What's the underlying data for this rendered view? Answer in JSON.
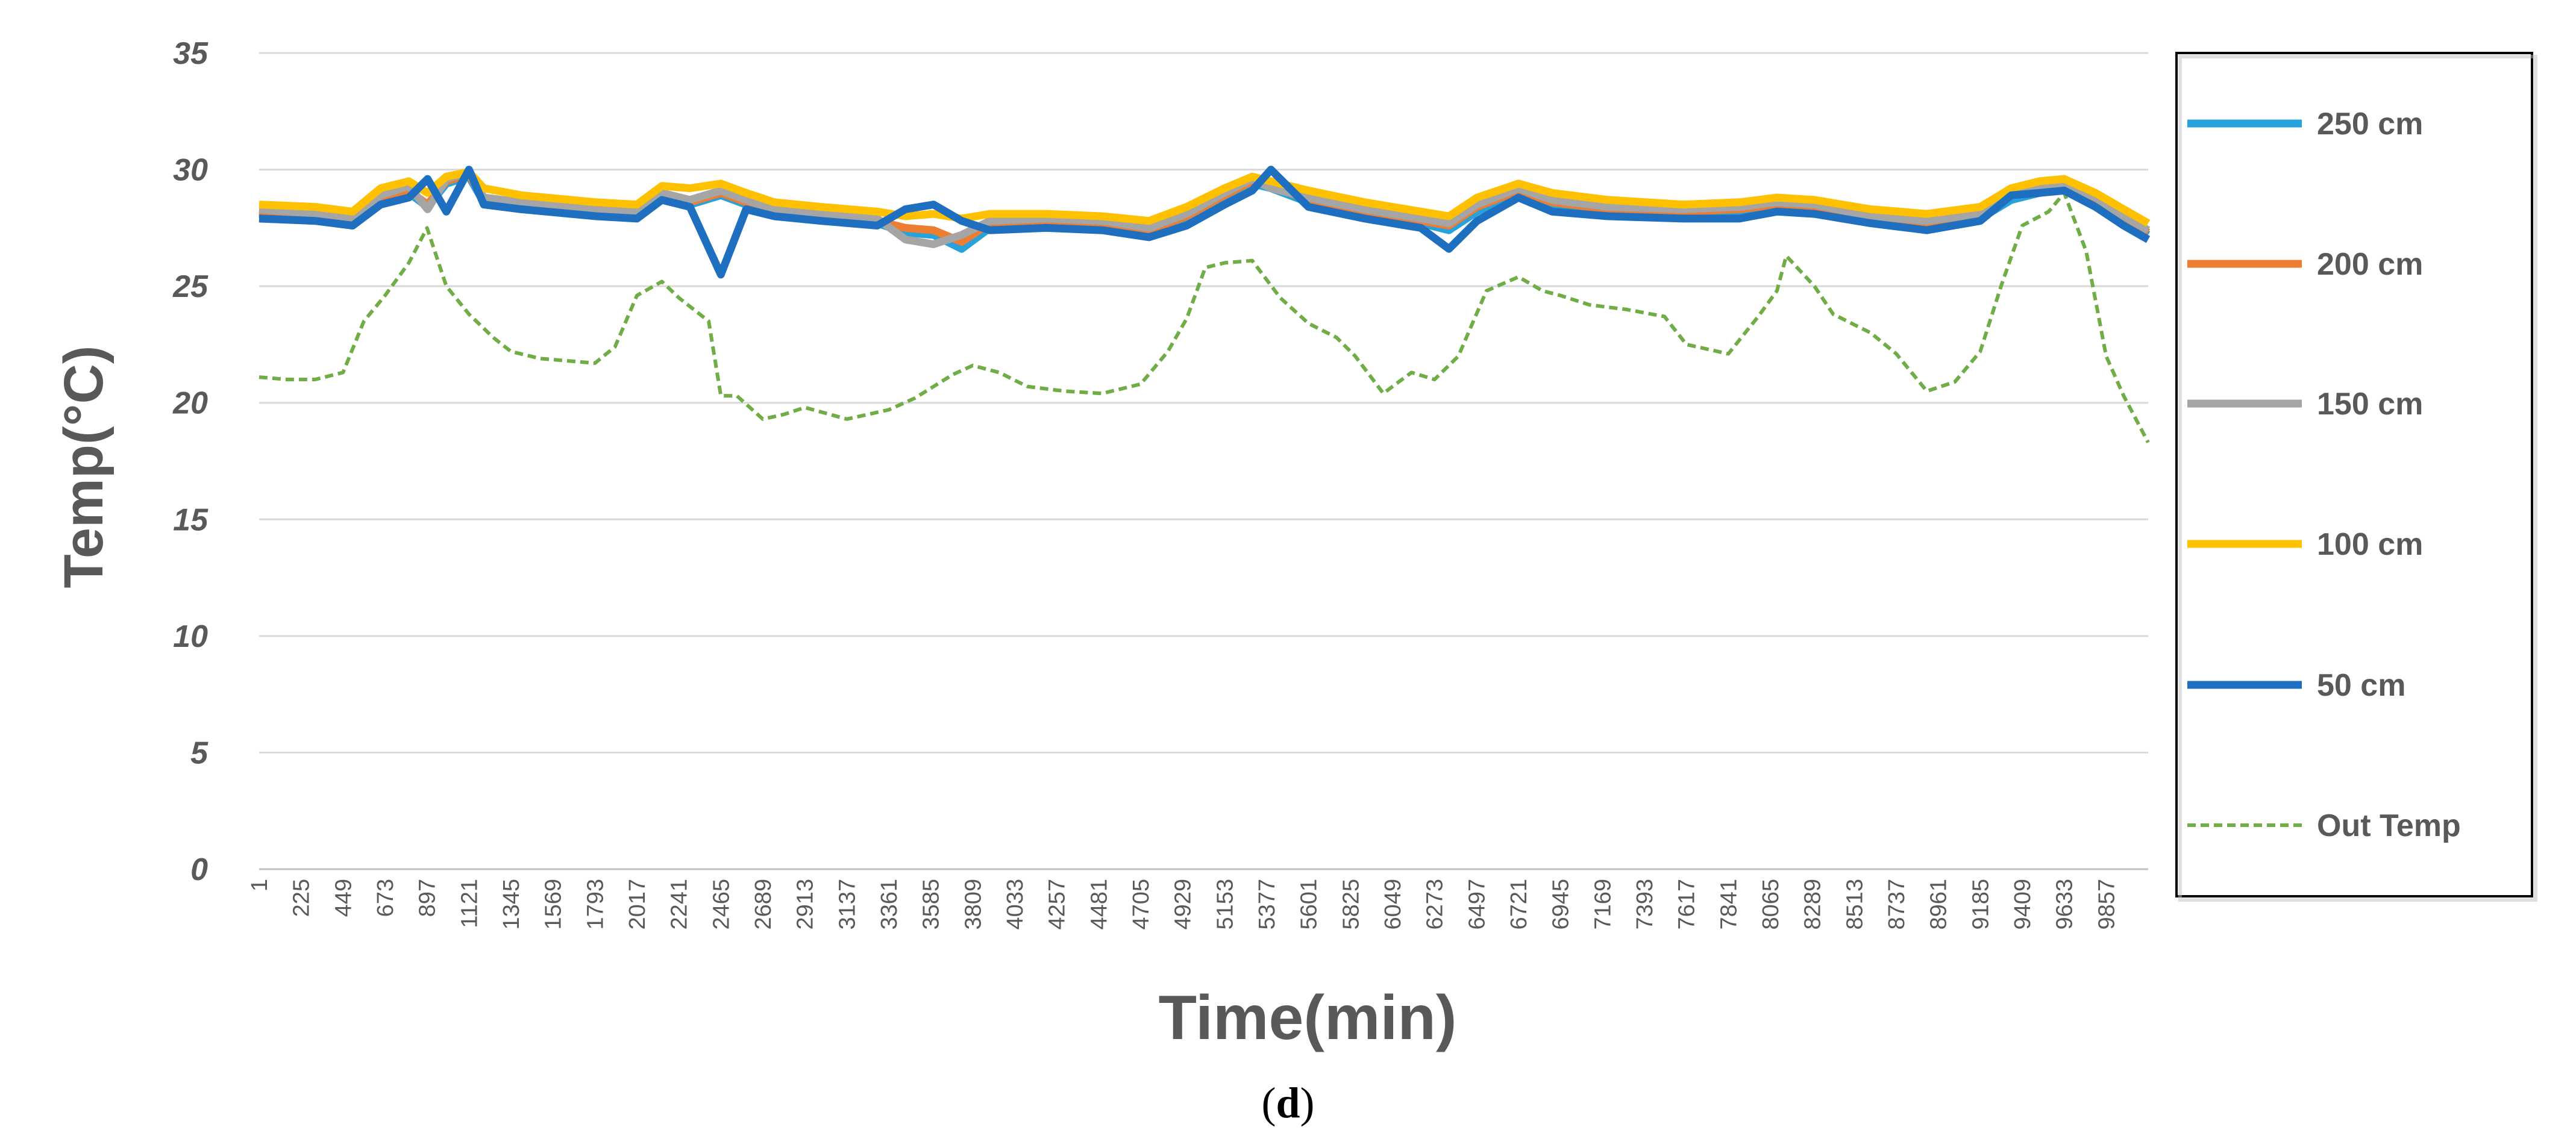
{
  "chart_data": {
    "type": "line",
    "xlabel": "Time(min)",
    "ylabel": "Temp(°C)",
    "ylim": [
      0,
      35
    ],
    "yticks": [
      0,
      5,
      10,
      15,
      20,
      25,
      30,
      35
    ],
    "xlim": [
      1,
      10081
    ],
    "xticks": [
      1,
      225,
      449,
      673,
      897,
      1121,
      1345,
      1569,
      1793,
      2017,
      2241,
      2465,
      2689,
      2913,
      3137,
      3361,
      3585,
      3809,
      4033,
      4257,
      4481,
      4705,
      4929,
      5153,
      5377,
      5601,
      5825,
      6049,
      6273,
      6497,
      6721,
      6945,
      7169,
      7393,
      7617,
      7841,
      8065,
      8289,
      8513,
      8737,
      8961,
      9185,
      9409,
      9633,
      9857
    ],
    "grid": true,
    "legend_position": "right",
    "series": [
      {
        "name": "250 cm",
        "color": "#27A2DB",
        "style": "solid",
        "x": [
          1,
          300,
          500,
          650,
          800,
          900,
          1000,
          1121,
          1200,
          1400,
          1800,
          2017,
          2150,
          2300,
          2465,
          2600,
          2750,
          3000,
          3300,
          3450,
          3600,
          3750,
          3900,
          4200,
          4500,
          4750,
          4950,
          5153,
          5300,
          5400,
          5600,
          5900,
          6200,
          6350,
          6500,
          6721,
          6900,
          7200,
          7600,
          7900,
          8100,
          8300,
          8600,
          8900,
          9185,
          9350,
          9500,
          9633,
          9800,
          9950,
          10081
        ],
        "y": [
          28.1,
          27.9,
          27.7,
          28.6,
          29.0,
          28.4,
          29.4,
          29.7,
          28.6,
          28.4,
          28.1,
          28.0,
          28.8,
          28.5,
          28.9,
          28.5,
          28.1,
          27.9,
          27.7,
          27.3,
          27.2,
          26.6,
          27.5,
          27.6,
          27.5,
          27.2,
          27.8,
          28.8,
          29.4,
          29.2,
          28.6,
          28.1,
          27.7,
          27.4,
          28.2,
          29.0,
          28.5,
          28.2,
          28.1,
          28.2,
          28.4,
          28.3,
          27.8,
          27.6,
          27.9,
          28.7,
          29.0,
          29.2,
          28.6,
          27.8,
          27.2
        ]
      },
      {
        "name": "200 cm",
        "color": "#ED7D31",
        "style": "solid",
        "x": [
          1,
          300,
          500,
          650,
          800,
          900,
          1000,
          1121,
          1200,
          1400,
          1800,
          2017,
          2150,
          2300,
          2465,
          2600,
          2750,
          3000,
          3300,
          3450,
          3600,
          3750,
          3900,
          4200,
          4500,
          4750,
          4950,
          5153,
          5300,
          5400,
          5600,
          5900,
          6200,
          6350,
          6500,
          6721,
          6900,
          7200,
          7600,
          7900,
          8100,
          8300,
          8600,
          8900,
          9185,
          9350,
          9500,
          9633,
          9800,
          9950,
          10081
        ],
        "y": [
          28.2,
          28.0,
          27.8,
          28.7,
          29.1,
          28.5,
          29.5,
          29.8,
          28.7,
          28.5,
          28.2,
          28.1,
          28.9,
          28.6,
          29.0,
          28.6,
          28.2,
          28.0,
          27.8,
          27.5,
          27.4,
          26.9,
          27.7,
          27.8,
          27.7,
          27.4,
          28.0,
          28.9,
          29.5,
          29.3,
          28.7,
          28.2,
          27.8,
          27.6,
          28.4,
          29.1,
          28.6,
          28.3,
          28.2,
          28.3,
          28.5,
          28.4,
          27.9,
          27.7,
          28.0,
          28.9,
          29.2,
          29.3,
          28.7,
          27.9,
          27.3
        ]
      },
      {
        "name": "150 cm",
        "color": "#A5A5A5",
        "style": "solid",
        "x": [
          1,
          300,
          500,
          650,
          800,
          900,
          1000,
          1121,
          1200,
          1400,
          1800,
          2017,
          2150,
          2300,
          2465,
          2600,
          2750,
          3000,
          3300,
          3450,
          3600,
          3750,
          3900,
          4200,
          4500,
          4750,
          4950,
          5153,
          5300,
          5400,
          5600,
          5900,
          6200,
          6350,
          6500,
          6721,
          6900,
          7200,
          7600,
          7900,
          8100,
          8300,
          8600,
          8900,
          9185,
          9350,
          9500,
          9633,
          9800,
          9950,
          10081
        ],
        "y": [
          28.3,
          28.1,
          27.9,
          28.9,
          29.3,
          28.3,
          29.6,
          29.9,
          28.8,
          28.6,
          28.3,
          28.2,
          29.0,
          28.7,
          29.1,
          28.7,
          28.3,
          28.1,
          27.9,
          27.0,
          26.8,
          27.2,
          27.8,
          27.9,
          27.8,
          27.5,
          28.1,
          29.0,
          29.6,
          29.2,
          28.8,
          28.3,
          27.9,
          27.7,
          28.5,
          29.2,
          28.7,
          28.4,
          28.3,
          28.4,
          28.6,
          28.5,
          28.0,
          27.8,
          28.1,
          29.0,
          29.3,
          29.4,
          28.8,
          28.0,
          27.4
        ]
      },
      {
        "name": "100 cm",
        "color": "#FFC000",
        "style": "solid",
        "x": [
          1,
          300,
          500,
          650,
          800,
          900,
          1000,
          1121,
          1200,
          1400,
          1800,
          2017,
          2150,
          2300,
          2465,
          2600,
          2750,
          3000,
          3300,
          3450,
          3600,
          3750,
          3900,
          4200,
          4500,
          4750,
          4950,
          5153,
          5300,
          5400,
          5600,
          5900,
          6200,
          6350,
          6500,
          6721,
          6900,
          7200,
          7600,
          7900,
          8100,
          8300,
          8600,
          8900,
          9185,
          9350,
          9500,
          9633,
          9800,
          9950,
          10081
        ],
        "y": [
          28.5,
          28.4,
          28.2,
          29.2,
          29.5,
          29.0,
          29.7,
          29.9,
          29.2,
          28.9,
          28.6,
          28.5,
          29.3,
          29.2,
          29.4,
          29.0,
          28.6,
          28.4,
          28.2,
          28.0,
          28.1,
          27.9,
          28.1,
          28.1,
          28.0,
          27.8,
          28.4,
          29.2,
          29.7,
          29.5,
          29.1,
          28.6,
          28.2,
          28.0,
          28.8,
          29.4,
          29.0,
          28.7,
          28.5,
          28.6,
          28.8,
          28.7,
          28.3,
          28.1,
          28.4,
          29.2,
          29.5,
          29.6,
          29.0,
          28.3,
          27.7
        ]
      },
      {
        "name": "50 cm",
        "color": "#1F6FC0",
        "style": "solid",
        "x": [
          1,
          300,
          500,
          650,
          800,
          900,
          1000,
          1121,
          1200,
          1400,
          1800,
          2017,
          2150,
          2300,
          2465,
          2600,
          2750,
          3000,
          3300,
          3450,
          3600,
          3750,
          3900,
          4200,
          4500,
          4750,
          4950,
          5153,
          5300,
          5400,
          5600,
          5900,
          6200,
          6350,
          6500,
          6721,
          6900,
          7200,
          7600,
          7900,
          8100,
          8300,
          8600,
          8900,
          9185,
          9350,
          9500,
          9633,
          9800,
          9950,
          10081
        ],
        "y": [
          27.9,
          27.8,
          27.6,
          28.5,
          28.8,
          29.6,
          28.2,
          30.0,
          28.5,
          28.3,
          28.0,
          27.9,
          28.7,
          28.4,
          25.5,
          28.3,
          28.0,
          27.8,
          27.6,
          28.3,
          28.5,
          27.8,
          27.4,
          27.5,
          27.4,
          27.1,
          27.6,
          28.5,
          29.1,
          30.0,
          28.4,
          27.9,
          27.5,
          26.6,
          27.8,
          28.8,
          28.2,
          28.0,
          27.9,
          27.9,
          28.2,
          28.1,
          27.7,
          27.4,
          27.8,
          28.9,
          29.0,
          29.1,
          28.4,
          27.6,
          27.0
        ]
      },
      {
        "name": "Out Temp",
        "color": "#70AD47",
        "style": "dashed",
        "x": [
          1,
          150,
          300,
          449,
          560,
          673,
          800,
          897,
          1000,
          1121,
          1250,
          1345,
          1500,
          1793,
          1900,
          2017,
          2150,
          2241,
          2400,
          2465,
          2550,
          2689,
          2800,
          2913,
          3137,
          3361,
          3500,
          3700,
          3809,
          3950,
          4100,
          4300,
          4500,
          4705,
          4850,
          4950,
          5050,
          5153,
          5300,
          5450,
          5601,
          5750,
          5850,
          6000,
          6049,
          6150,
          6273,
          6400,
          6550,
          6721,
          6850,
          6945,
          7100,
          7300,
          7500,
          7617,
          7841,
          8000,
          8100,
          8150,
          8300,
          8400,
          8600,
          8737,
          8900,
          9050,
          9185,
          9300,
          9409,
          9550,
          9633,
          9750,
          9857,
          9950,
          10081
        ],
        "y": [
          21.1,
          21.0,
          21.0,
          21.3,
          23.5,
          24.6,
          26.0,
          27.5,
          25.0,
          23.8,
          22.8,
          22.2,
          21.9,
          21.7,
          22.4,
          24.6,
          25.2,
          24.5,
          23.5,
          20.3,
          20.3,
          19.3,
          19.5,
          19.8,
          19.3,
          19.7,
          20.2,
          21.2,
          21.6,
          21.3,
          20.7,
          20.5,
          20.4,
          20.8,
          22.2,
          23.6,
          25.8,
          26.0,
          26.1,
          24.5,
          23.4,
          22.8,
          22.0,
          20.4,
          20.7,
          21.3,
          21.0,
          22.0,
          24.8,
          25.4,
          24.8,
          24.6,
          24.2,
          24.0,
          23.7,
          22.5,
          22.1,
          23.7,
          24.8,
          26.3,
          25.0,
          23.8,
          23.0,
          22.1,
          20.5,
          20.9,
          22.2,
          25.1,
          27.6,
          28.2,
          29.0,
          26.5,
          22.0,
          20.3,
          18.3
        ]
      }
    ]
  },
  "figure": {
    "caption_open": "(",
    "caption_letter": "d",
    "caption_close": ")"
  }
}
